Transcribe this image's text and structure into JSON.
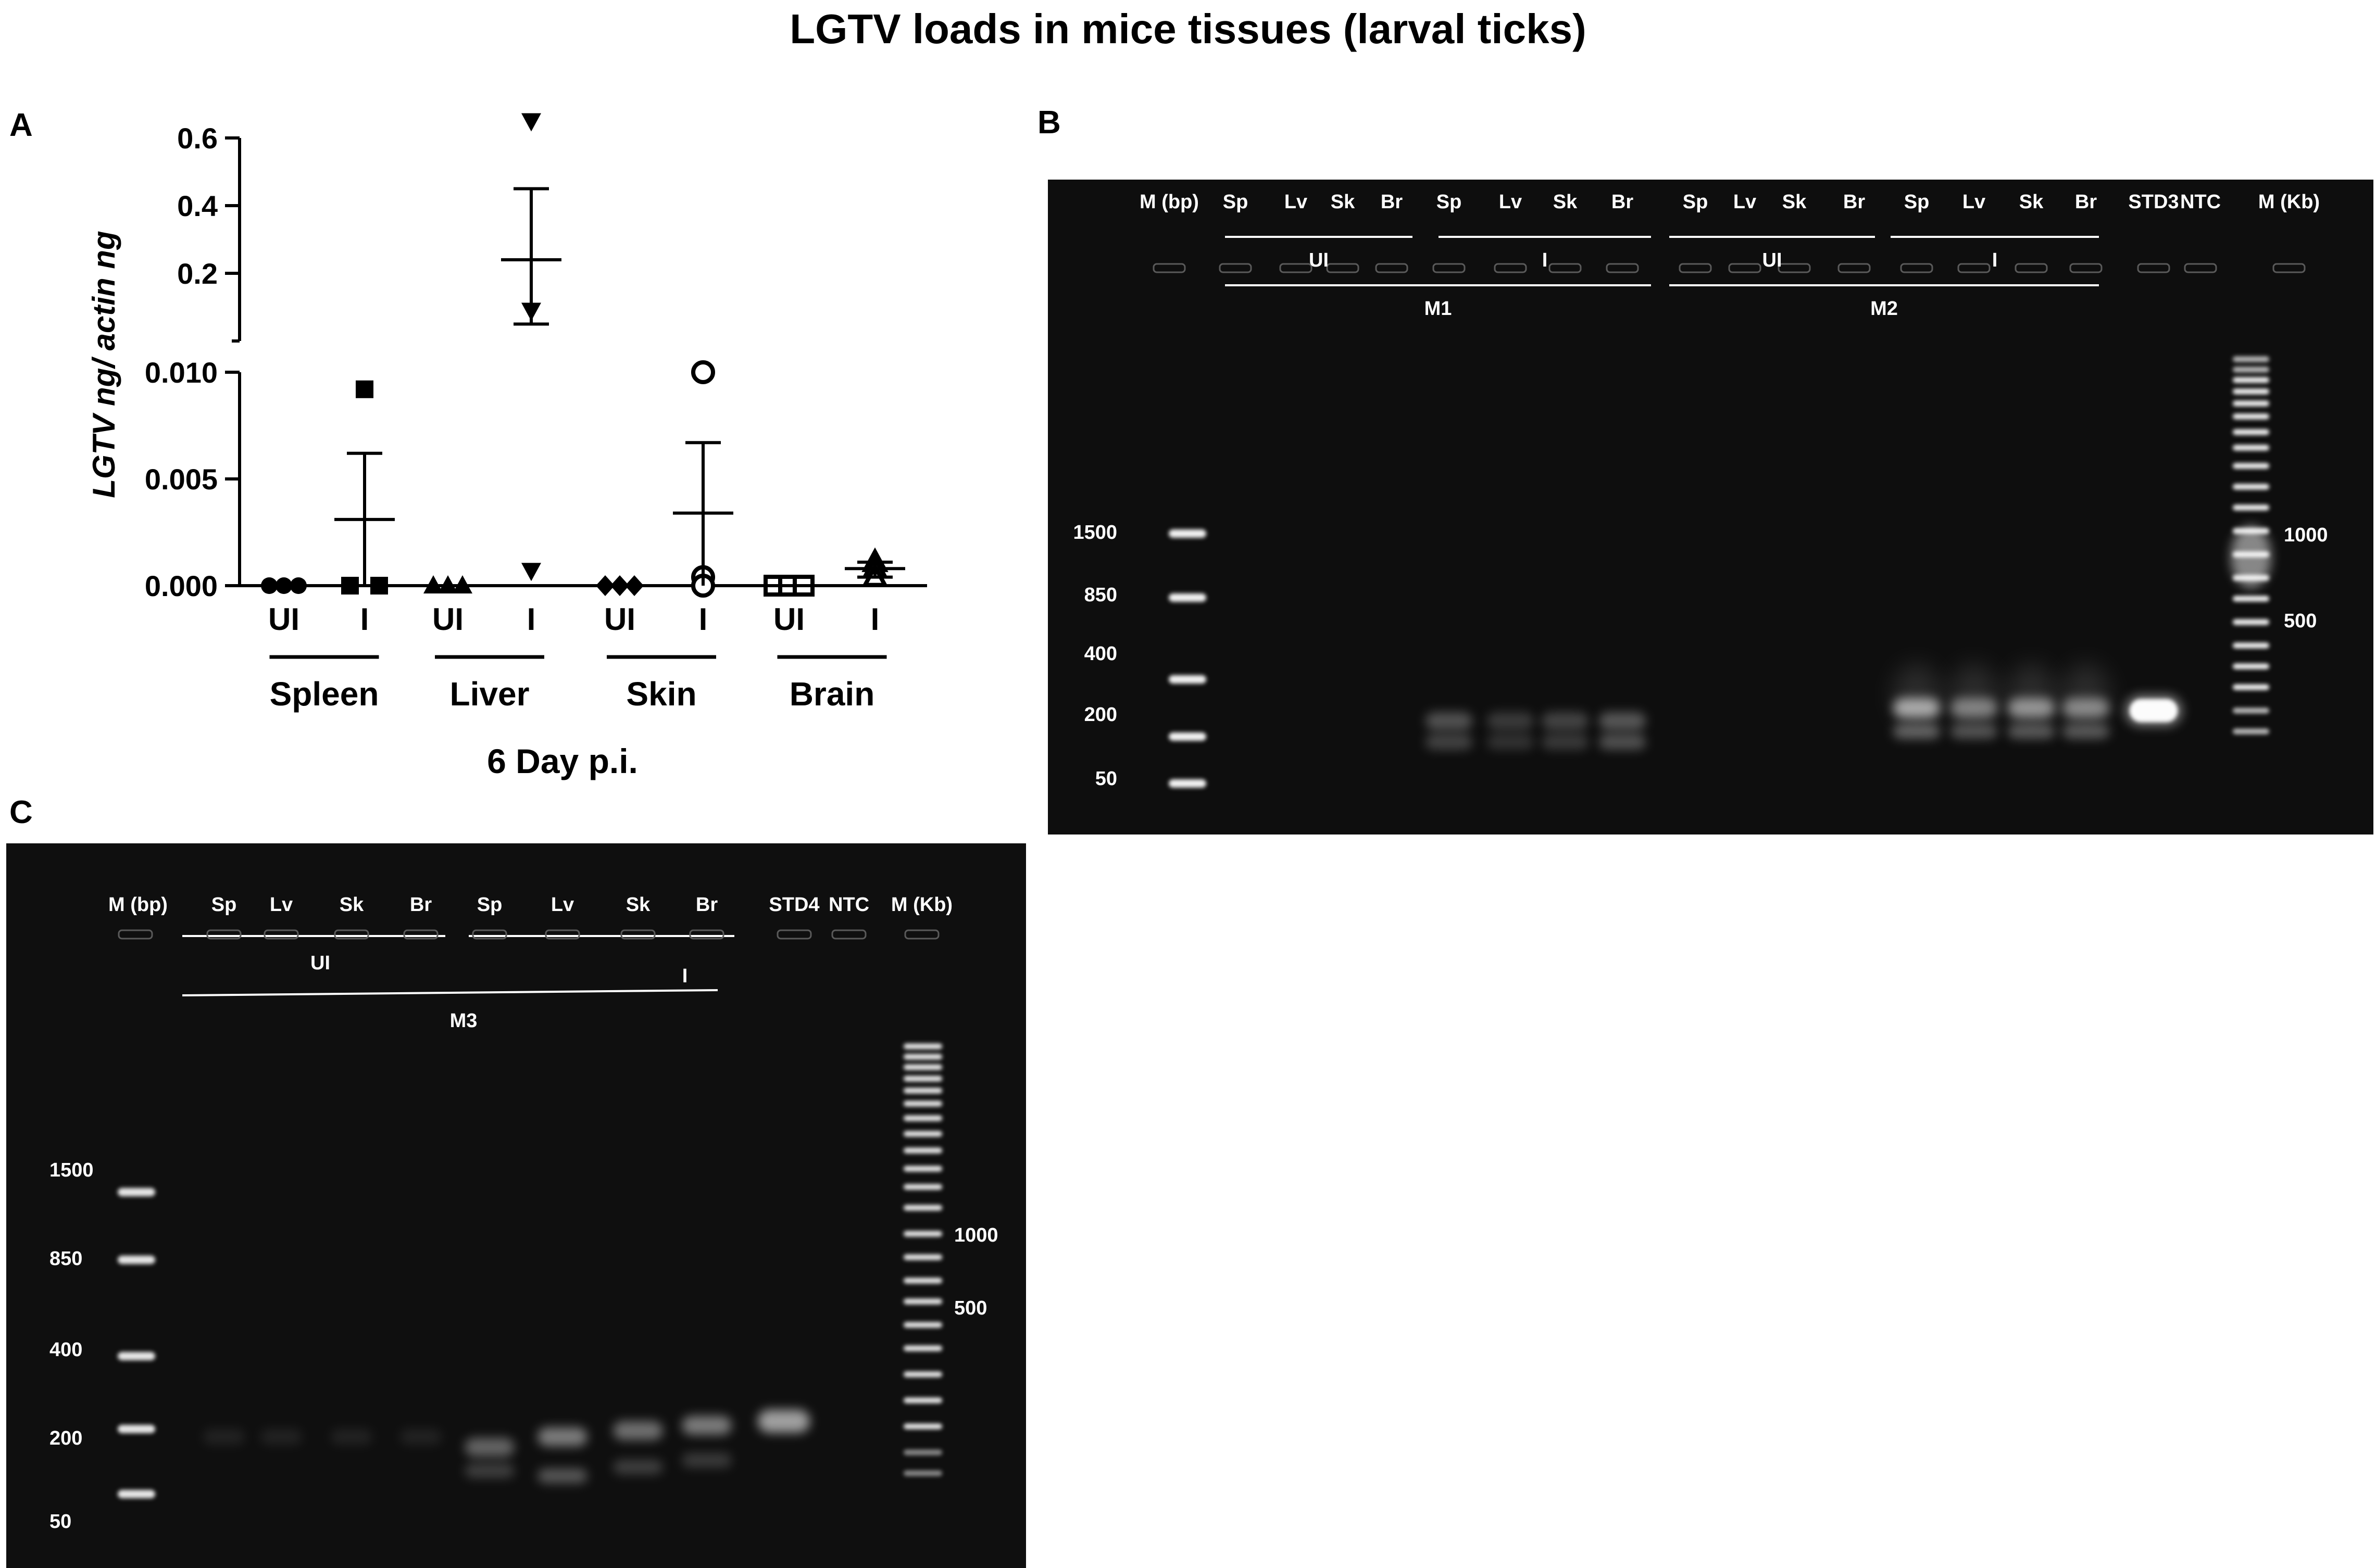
{
  "figure": {
    "title": "LGTV loads in mice tissues (larval ticks)",
    "panel_a_letter": "A",
    "panel_b_letter": "B",
    "panel_c_letter": "C"
  },
  "chart_data": {
    "type": "scatter",
    "title": "",
    "ylabel": "LGTV ng/ actin ng",
    "xlabel": "6 Day p.i.",
    "y_axis_broken": true,
    "ylim_lower": [
      0,
      0.01
    ],
    "ylim_upper": [
      0.0,
      0.6
    ],
    "yticks_lower": [
      "0.000",
      "0.005",
      "0.010"
    ],
    "yticks_upper": [
      "0.2",
      "0.4",
      "0.6"
    ],
    "tissues": [
      "Spleen",
      "Liver",
      "Skin",
      "Brain"
    ],
    "categories": [
      "UI",
      "I",
      "UI",
      "I",
      "UI",
      "I",
      "UI",
      "I"
    ],
    "groups": [
      {
        "tissue": "Spleen",
        "group": "UI",
        "marker": "circle-filled",
        "points": [
          0,
          0,
          0
        ],
        "mean": 0
      },
      {
        "tissue": "Spleen",
        "group": "I",
        "marker": "square-filled",
        "points": [
          0.0092,
          0,
          0
        ],
        "mean": 0.0031,
        "err": [
          0,
          0.0062
        ]
      },
      {
        "tissue": "Liver",
        "group": "UI",
        "marker": "triangle-up-filled",
        "points": [
          0,
          0,
          0
        ],
        "mean": 0
      },
      {
        "tissue": "Liver",
        "group": "I",
        "marker": "triangle-down-filled",
        "points": [
          0.65,
          0.09,
          0.0007
        ],
        "mean": 0.24,
        "err": [
          0.05,
          0.45
        ]
      },
      {
        "tissue": "Skin",
        "group": "UI",
        "marker": "diamond-filled",
        "points": [
          0,
          0,
          0
        ],
        "mean": 0
      },
      {
        "tissue": "Skin",
        "group": "I",
        "marker": "circle-open",
        "points": [
          0.01,
          0.0004,
          0
        ],
        "mean": 0.0034,
        "err": [
          0,
          0.0067
        ]
      },
      {
        "tissue": "Brain",
        "group": "UI",
        "marker": "square-open",
        "points": [
          0,
          0,
          0
        ],
        "mean": 0
      },
      {
        "tissue": "Brain",
        "group": "I",
        "marker": "triangle-up-open",
        "points": [
          0.0011,
          0.0008,
          0.0004
        ],
        "mean": 0.0008,
        "err": [
          0.0004,
          0.0011
        ]
      }
    ]
  },
  "gel_b": {
    "lane_labels": [
      "M (bp)",
      "Sp",
      "Lv",
      "Sk",
      "Br",
      "Sp",
      "Lv",
      "Sk",
      "Br",
      "Sp",
      "Lv",
      "Sk",
      "Br",
      "Sp",
      "Lv",
      "Sk",
      "Br",
      "STD3",
      "NTC",
      "M (Kb)"
    ],
    "group_labels": [
      "UI",
      "I",
      "UI",
      "I"
    ],
    "mouse_labels": [
      "M1",
      "M2"
    ],
    "left_ladder": [
      "1500",
      "850",
      "400",
      "200",
      "50"
    ],
    "right_ladder": [
      "1000",
      "500"
    ]
  },
  "gel_c": {
    "lane_labels": [
      "M (bp)",
      "Sp",
      "Lv",
      "Sk",
      "Br",
      "Sp",
      "Lv",
      "Sk",
      "Br",
      "STD4",
      "NTC",
      "M (Kb)"
    ],
    "group_labels": [
      "UI",
      "I"
    ],
    "mouse_labels": [
      "M3"
    ],
    "left_ladder": [
      "1500",
      "850",
      "400",
      "200",
      "50"
    ],
    "right_ladder": [
      "1000",
      "500"
    ]
  },
  "colors": {
    "gel_background": "#0d0d0d",
    "band": "#ffffff",
    "text": "#000000"
  }
}
